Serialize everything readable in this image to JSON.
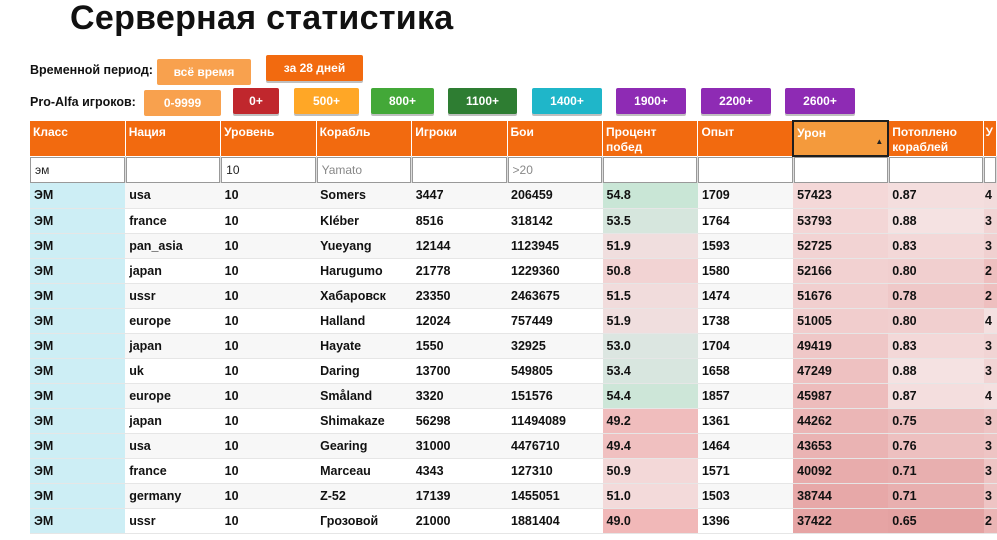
{
  "title": "Серверная статистика",
  "period": {
    "label": "Временной период:",
    "buttons": [
      {
        "label": "всё время",
        "color": "#f8a14e",
        "selected": true
      },
      {
        "label": "за 28 дней",
        "color": "#f26a0f",
        "selected": false
      }
    ]
  },
  "pro": {
    "label": "Pro-Alfa игроков:",
    "buttons": [
      {
        "label": "0-9999",
        "color": "#f8a14e",
        "text": "#ffffff",
        "selected": true
      },
      {
        "label": "0+",
        "color": "#c0272d",
        "text": "#ffffff"
      },
      {
        "label": "500+",
        "color": "#ffa726",
        "text": "#ffffff"
      },
      {
        "label": "800+",
        "color": "#43a838",
        "text": "#ffffff"
      },
      {
        "label": "1100+",
        "color": "#2e7d32",
        "text": "#ffffff"
      },
      {
        "label": "1400+",
        "color": "#1fb6c9",
        "text": "#ffffff"
      },
      {
        "label": "1900+",
        "color": "#8e2bb4",
        "text": "#ffffff"
      },
      {
        "label": "2200+",
        "color": "#8e2bb4",
        "text": "#ffffff"
      },
      {
        "label": "2600+",
        "color": "#8e2bb4",
        "text": "#ffffff"
      }
    ]
  },
  "table": {
    "headers": [
      "Класс",
      "Нация",
      "Уровень",
      "Корабль",
      "Игроки",
      "Бои",
      "Процент побед",
      "Опыт",
      "Урон",
      "Потоплено кораблей",
      "У"
    ],
    "sorted_column": "Урон",
    "filters": [
      {
        "value": "эм",
        "placeholder": ""
      },
      {
        "value": "",
        "placeholder": ""
      },
      {
        "value": "10",
        "placeholder": ""
      },
      {
        "value": "",
        "placeholder": "Yamato"
      },
      {
        "value": "",
        "placeholder": ""
      },
      {
        "value": "",
        "placeholder": ">20"
      },
      {
        "value": "",
        "placeholder": ""
      },
      {
        "value": "",
        "placeholder": ""
      },
      {
        "value": "",
        "placeholder": ""
      },
      {
        "value": "",
        "placeholder": ""
      },
      {
        "value": "",
        "placeholder": ""
      }
    ],
    "rows": [
      [
        "ЭМ",
        "usa",
        "10",
        "Somers",
        "3447",
        "206459",
        "54.8",
        "1709",
        "57423",
        "0.87",
        "4"
      ],
      [
        "ЭМ",
        "france",
        "10",
        "Kléber",
        "8516",
        "318142",
        "53.5",
        "1764",
        "53793",
        "0.88",
        "3"
      ],
      [
        "ЭМ",
        "pan_asia",
        "10",
        "Yueyang",
        "12144",
        "1123945",
        "51.9",
        "1593",
        "52725",
        "0.83",
        "3"
      ],
      [
        "ЭМ",
        "japan",
        "10",
        "Harugumo",
        "21778",
        "1229360",
        "50.8",
        "1580",
        "52166",
        "0.80",
        "2"
      ],
      [
        "ЭМ",
        "ussr",
        "10",
        "Хабаровск",
        "23350",
        "2463675",
        "51.5",
        "1474",
        "51676",
        "0.78",
        "2"
      ],
      [
        "ЭМ",
        "europe",
        "10",
        "Halland",
        "12024",
        "757449",
        "51.9",
        "1738",
        "51005",
        "0.80",
        "4"
      ],
      [
        "ЭМ",
        "japan",
        "10",
        "Hayate",
        "1550",
        "32925",
        "53.0",
        "1704",
        "49419",
        "0.83",
        "3"
      ],
      [
        "ЭМ",
        "uk",
        "10",
        "Daring",
        "13700",
        "549805",
        "53.4",
        "1658",
        "47249",
        "0.88",
        "3"
      ],
      [
        "ЭМ",
        "europe",
        "10",
        "Småland",
        "3320",
        "151576",
        "54.4",
        "1857",
        "45987",
        "0.87",
        "4"
      ],
      [
        "ЭМ",
        "japan",
        "10",
        "Shimakaze",
        "56298",
        "11494089",
        "49.2",
        "1361",
        "44262",
        "0.75",
        "3"
      ],
      [
        "ЭМ",
        "usa",
        "10",
        "Gearing",
        "31000",
        "4476710",
        "49.4",
        "1464",
        "43653",
        "0.76",
        "3"
      ],
      [
        "ЭМ",
        "france",
        "10",
        "Marceau",
        "4343",
        "127310",
        "50.9",
        "1571",
        "40092",
        "0.71",
        "3"
      ],
      [
        "ЭМ",
        "germany",
        "10",
        "Z-52",
        "17139",
        "1455051",
        "51.0",
        "1503",
        "38744",
        "0.71",
        "3"
      ],
      [
        "ЭМ",
        "ussr",
        "10",
        "Грозовой",
        "21000",
        "1881404",
        "49.0",
        "1396",
        "37422",
        "0.65",
        "2"
      ]
    ],
    "heat": {
      "winrate": [
        "#c9e6d6",
        "#d6e6dd",
        "#f0dede",
        "#f2d3d3",
        "#f1dcdc",
        "#f0dede",
        "#dce6e1",
        "#d8e6df",
        "#cde6d8",
        "#f0bdbd",
        "#f0c0c0",
        "#f3d8d8",
        "#f3dada",
        "#f1b8b8"
      ],
      "damage": [
        "#f4d8d8",
        "#f3d6d6",
        "#f2d3d3",
        "#f2d1d1",
        "#f1cfcf",
        "#f1cdcd",
        "#efc7c7",
        "#eec1c1",
        "#edbcbc",
        "#ebb6b6",
        "#eab3b3",
        "#e8acac",
        "#e7a8a8",
        "#e6a4a4"
      ],
      "sunk": [
        "#f4dede",
        "#f5e2e2",
        "#f3d8d8",
        "#f1cfcf",
        "#efc8c8",
        "#f1cfcf",
        "#f3d8d8",
        "#f5e2e2",
        "#f4dede",
        "#ecbdbd",
        "#edc0c0",
        "#e8afaf",
        "#e8afaf",
        "#e4a2a2"
      ],
      "last": [
        "#f2dcdc",
        "#f1d4d4",
        "#f0d0d0",
        "#eebfbf",
        "#eebfbf",
        "#f4e0e0",
        "#f1d4d4",
        "#f1d4d4",
        "#f4e0e0",
        "#eec4c4",
        "#eec4c4",
        "#eec4c4",
        "#eec4c4",
        "#ebb5b5"
      ]
    }
  }
}
